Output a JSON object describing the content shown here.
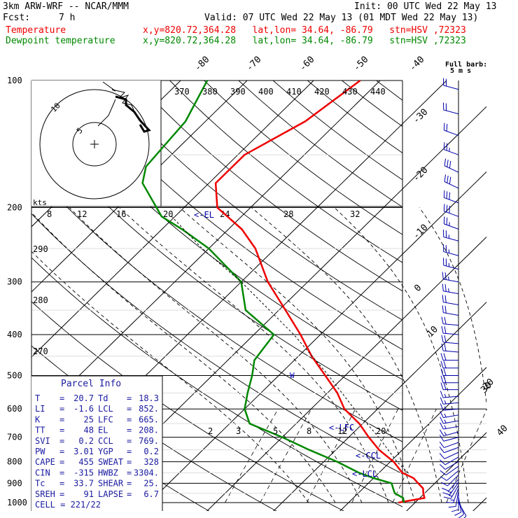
{
  "header": {
    "model": "3km ARW-WRF -- NCAR/MMM",
    "init": "Init: 00 UTC Wed 22 May 13",
    "fcst_label": "Fcst:",
    "fcst_value": "7 h",
    "valid": "Valid: 07 UTC Wed 22 May 13 (01 MDT Wed 22 May 13)",
    "temp_label": "Temperature",
    "dew_label": "Dewpoint temperature",
    "location": "x,y=820.72,364.28   lat,lon= 34.64, -86.79   stn=HSV ,72323"
  },
  "colors": {
    "temperature": "#ee0000",
    "dewpoint": "#008800",
    "parcel": "#000000",
    "barbs": "#0000aa",
    "info": "#1a1aa0"
  },
  "barb_legend": {
    "title": "Full barb:",
    "value": "5 m s"
  },
  "chart_data": {
    "type": "line",
    "title": "",
    "y_axis": "pressure (hPa, log)",
    "pressure_ticks": [
      100,
      200,
      300,
      400,
      500,
      600,
      700,
      800,
      900,
      1000
    ],
    "isotherm_labels": [
      "-80",
      "-70",
      "-60",
      "-50",
      "-40",
      "-30",
      "-20",
      "-10",
      "0",
      "10",
      "20",
      "30",
      "40"
    ],
    "theta_labels": [
      "370",
      "380",
      "390",
      "400",
      "410",
      "420",
      "430",
      "440"
    ],
    "theta_left_labels": [
      "290",
      "280",
      "270"
    ],
    "mixing_ratio_labels": [
      "2",
      "3",
      "5",
      "8",
      "12",
      "20"
    ],
    "hodo_speed_labels": [
      "8",
      "12",
      "16",
      "20",
      "24",
      "28",
      "32"
    ],
    "hodo_kts_label": "kts",
    "series": [
      {
        "name": "Temperature",
        "points": [
          [
            1000,
            17.5
          ],
          [
            975,
            20.7
          ],
          [
            950,
            19.8
          ],
          [
            925,
            19
          ],
          [
            900,
            17.5
          ],
          [
            875,
            16
          ],
          [
            850,
            13.5
          ],
          [
            800,
            10.5
          ],
          [
            750,
            6.5
          ],
          [
            700,
            3
          ],
          [
            650,
            -0.5
          ],
          [
            600,
            -5
          ],
          [
            550,
            -8.5
          ],
          [
            500,
            -13
          ],
          [
            450,
            -18
          ],
          [
            400,
            -23
          ],
          [
            350,
            -29
          ],
          [
            300,
            -36
          ],
          [
            250,
            -43
          ],
          [
            225,
            -48
          ],
          [
            200,
            -55
          ],
          [
            175,
            -59
          ],
          [
            150,
            -59
          ],
          [
            125,
            -55
          ],
          [
            100,
            -53
          ]
        ]
      },
      {
        "name": "Dewpoint temperature",
        "points": [
          [
            1000,
            18.3
          ],
          [
            975,
            17.5
          ],
          [
            950,
            15.5
          ],
          [
            925,
            14.5
          ],
          [
            900,
            13.5
          ],
          [
            875,
            10
          ],
          [
            850,
            7
          ],
          [
            800,
            2
          ],
          [
            750,
            -4
          ],
          [
            700,
            -10
          ],
          [
            650,
            -17
          ],
          [
            600,
            -20
          ],
          [
            550,
            -22
          ],
          [
            500,
            -24
          ],
          [
            460,
            -26
          ],
          [
            400,
            -27
          ],
          [
            350,
            -35
          ],
          [
            300,
            -40
          ],
          [
            250,
            -50
          ],
          [
            225,
            -57
          ],
          [
            210,
            -62
          ],
          [
            175,
            -70
          ],
          [
            160,
            -72
          ],
          [
            125,
            -73
          ],
          [
            100,
            -76
          ]
        ]
      },
      {
        "name": "Parcel",
        "points": [
          [
            852,
            14.5
          ],
          [
            800,
            11
          ],
          [
            700,
            4.5
          ],
          [
            600,
            -3.5
          ],
          [
            500,
            -12.5
          ],
          [
            400,
            -24
          ],
          [
            300,
            -40
          ],
          [
            250,
            -51
          ],
          [
            208,
            -61
          ]
        ]
      }
    ],
    "level_markers": [
      {
        "label": "<-EL",
        "p": 208
      },
      {
        "label": "<-LFC",
        "p": 665
      },
      {
        "label": "<-CCL",
        "p": 769
      },
      {
        "label": "<-LCL",
        "p": 852
      }
    ],
    "isotherm_zero_marker": "W"
  },
  "parcel_info": {
    "title": "Parcel Info",
    "rows": [
      [
        "T",
        "20.7",
        "Td",
        "18.3"
      ],
      [
        "LI",
        "-1.6",
        "LCL",
        "852."
      ],
      [
        "K",
        "25",
        "LFC",
        "665."
      ],
      [
        "TT",
        "48",
        "EL",
        "208."
      ],
      [
        "SVI",
        "0.2",
        "CCL",
        "769."
      ],
      [
        "PW",
        "3.01",
        "YGP",
        "0.2"
      ],
      [
        "CAPE",
        "455",
        "SWEAT",
        "328"
      ],
      [
        "CIN",
        "-315",
        "HWBZ",
        "3304."
      ],
      [
        "Tc",
        "33.7",
        "SHEAR",
        "25."
      ],
      [
        "SREH",
        "91",
        "LAPSE",
        "6.7"
      ]
    ],
    "cell": "CELL = 221/22"
  },
  "wind_barbs": [
    [
      1000,
      150,
      10
    ],
    [
      985,
      160,
      10
    ],
    [
      970,
      170,
      12
    ],
    [
      955,
      180,
      12
    ],
    [
      940,
      190,
      12
    ],
    [
      925,
      200,
      14
    ],
    [
      910,
      210,
      14
    ],
    [
      895,
      215,
      14
    ],
    [
      880,
      220,
      12
    ],
    [
      860,
      225,
      10
    ],
    [
      840,
      230,
      10
    ],
    [
      820,
      235,
      10
    ],
    [
      800,
      240,
      10
    ],
    [
      780,
      240,
      10
    ],
    [
      760,
      245,
      10
    ],
    [
      740,
      250,
      12
    ],
    [
      720,
      250,
      12
    ],
    [
      700,
      255,
      12
    ],
    [
      680,
      255,
      14
    ],
    [
      660,
      260,
      14
    ],
    [
      640,
      260,
      15
    ],
    [
      620,
      260,
      15
    ],
    [
      600,
      265,
      16
    ],
    [
      580,
      265,
      16
    ],
    [
      560,
      265,
      17
    ],
    [
      540,
      270,
      18
    ],
    [
      520,
      270,
      18
    ],
    [
      500,
      270,
      18
    ],
    [
      480,
      270,
      19
    ],
    [
      460,
      270,
      20
    ],
    [
      440,
      275,
      20
    ],
    [
      420,
      275,
      20
    ],
    [
      400,
      275,
      22
    ],
    [
      380,
      275,
      22
    ],
    [
      360,
      280,
      22
    ],
    [
      340,
      280,
      22
    ],
    [
      320,
      280,
      23
    ],
    [
      300,
      280,
      24
    ],
    [
      280,
      285,
      24
    ],
    [
      260,
      285,
      24
    ],
    [
      240,
      285,
      26
    ],
    [
      225,
      290,
      26
    ],
    [
      210,
      290,
      28
    ],
    [
      195,
      290,
      30
    ],
    [
      180,
      295,
      28
    ],
    [
      165,
      295,
      28
    ],
    [
      150,
      290,
      25
    ],
    [
      135,
      290,
      22
    ],
    [
      120,
      285,
      20
    ],
    [
      105,
      285,
      18
    ]
  ]
}
